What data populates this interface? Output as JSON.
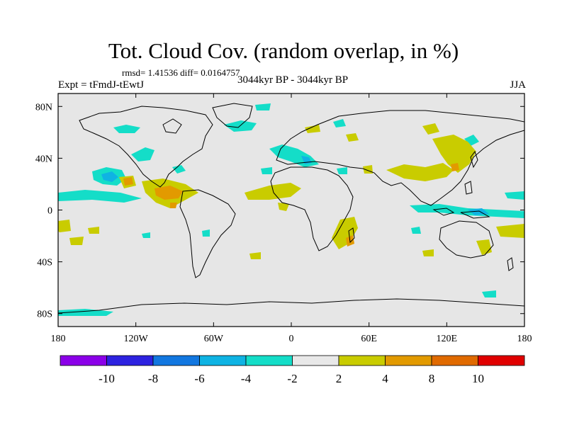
{
  "title": "Tot. Cloud Cov. (random overlap, in %)",
  "stats": "rmsd= 1.41536  diff= 0.0164757",
  "experiment": "Expt = tFmdJ-tEwtJ",
  "period": "3044kyr BP - 3044kyr BP",
  "season": "JJA",
  "lon_ticks": [
    "180",
    "120W",
    "60W",
    "0",
    "60E",
    "120E",
    "180"
  ],
  "lat_ticks": [
    "80N",
    "40N",
    "0",
    "40S",
    "80S"
  ],
  "colorbar": {
    "colors": [
      "#8b00e8",
      "#2d22e0",
      "#1277e0",
      "#0fb3e3",
      "#14ddc8",
      "#e8e8e8",
      "#c9cc00",
      "#e29a00",
      "#e06a00",
      "#e00000"
    ],
    "labels": [
      "-10",
      "-8",
      "-6",
      "-4",
      "-2",
      "2",
      "4",
      "8",
      "10"
    ]
  }
}
